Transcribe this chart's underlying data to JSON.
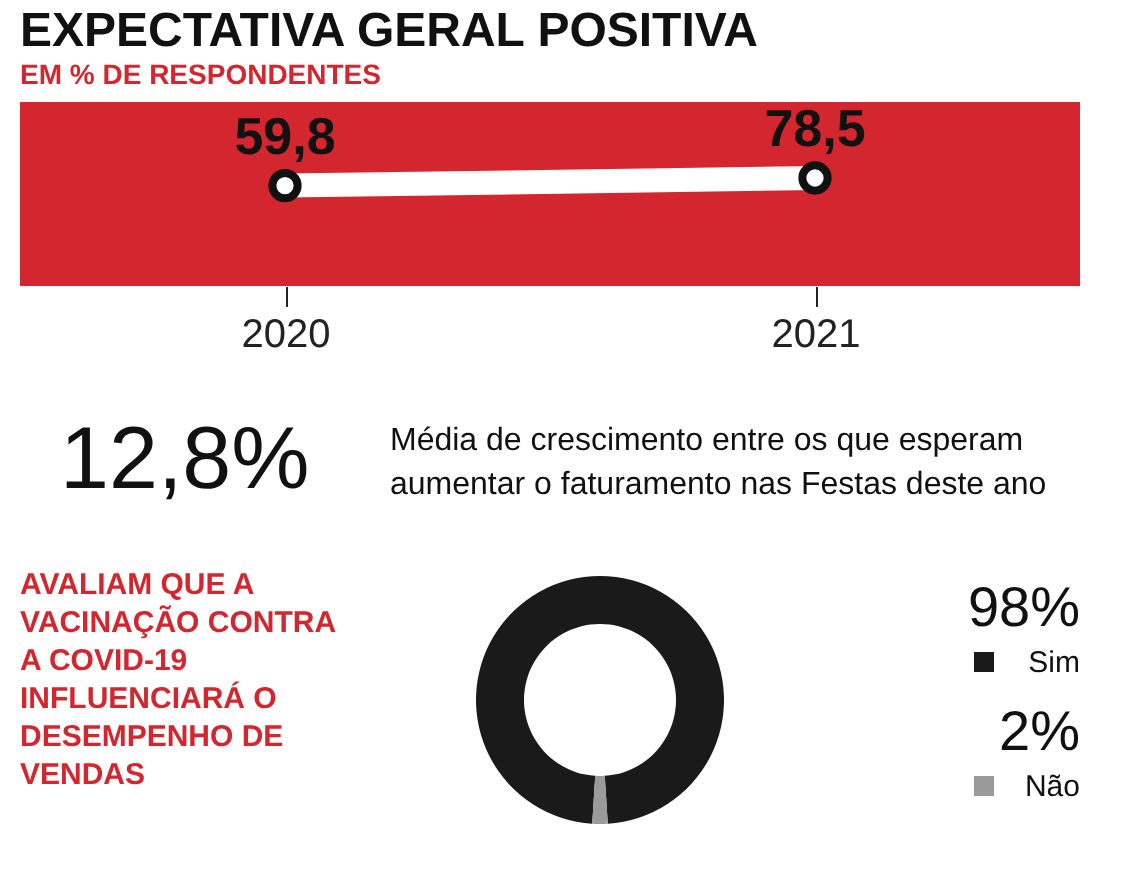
{
  "chart_data": [
    {
      "type": "line",
      "title": "EXPECTATIVA GERAL POSITIVA",
      "subtitle": "EM % DE RESPONDENTES",
      "categories": [
        "2020",
        "2021"
      ],
      "series": [
        {
          "color": "#ffffff",
          "values": [
            59.8,
            78.5
          ],
          "value_labels": [
            "59,8",
            "78,5"
          ]
        }
      ],
      "marker": "circle"
    },
    {
      "type": "other",
      "annotations": [
        "12,8%",
        "Média de crescimento entre os que esperam aumentar o faturamento nas Festas deste ano"
      ]
    },
    {
      "type": "donut",
      "title": "AVALIAM QUE A VACINAÇÃO CONTRA A COVID-19 INFLUENCIARÁ O DESEMPENHO DE VENDAS",
      "categories": [
        "Sim",
        "Não"
      ],
      "values": [
        98,
        2
      ],
      "colors": [
        "#1a1a1a",
        "#9a9a9a"
      ],
      "value_labels": [
        "98%",
        "2%"
      ],
      "legend": "right"
    }
  ]
}
